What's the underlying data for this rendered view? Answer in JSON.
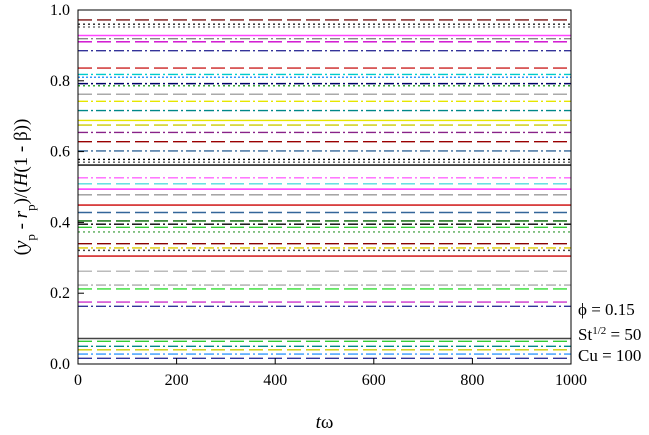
{
  "chart_data": {
    "type": "line",
    "xlabel_var": "t",
    "xlabel_rest": "ω",
    "ylabel_parts": [
      {
        "t": "(",
        "i": false
      },
      {
        "t": "y",
        "i": true
      },
      {
        "t": "p",
        "i": false,
        "sub": true
      },
      {
        "t": " - ",
        "i": false
      },
      {
        "t": "r",
        "i": true
      },
      {
        "t": "p",
        "i": false,
        "sub": true
      },
      {
        "t": ")/(",
        "i": false
      },
      {
        "t": "H",
        "i": true
      },
      {
        "t": "(1 - β))",
        "i": false
      }
    ],
    "xlim": [
      0,
      1000
    ],
    "ylim": [
      0,
      1.0
    ],
    "x_ticks": [
      "0",
      "200",
      "400",
      "600",
      "800",
      "1000"
    ],
    "y_ticks": [
      "0.0",
      "0.2",
      "0.4",
      "0.6",
      "0.8",
      "1.0"
    ],
    "x": [
      0,
      1000
    ],
    "series": [
      {
        "y": 0.972,
        "color": "#7a1010",
        "style": "dash"
      },
      {
        "y": 0.96,
        "color": "#222222",
        "style": "dot"
      },
      {
        "y": 0.952,
        "color": "#777777",
        "style": "dot"
      },
      {
        "y": 0.928,
        "color": "#ff44ff",
        "style": "solid"
      },
      {
        "y": 0.919,
        "color": "#888888",
        "style": "dashdot"
      },
      {
        "y": 0.91,
        "color": "#cc00cc",
        "style": "dash"
      },
      {
        "y": 0.885,
        "color": "#333399",
        "style": "dashdot"
      },
      {
        "y": 0.836,
        "color": "#cc2222",
        "style": "dash"
      },
      {
        "y": 0.818,
        "color": "#00cccc",
        "style": "dashdot"
      },
      {
        "y": 0.81,
        "color": "#3399ff",
        "style": "dotdot"
      },
      {
        "y": 0.792,
        "color": "#000066",
        "style": "dashdot"
      },
      {
        "y": 0.786,
        "color": "#33aa33",
        "style": "dot"
      },
      {
        "y": 0.762,
        "color": "#aaaaaa",
        "style": "dash"
      },
      {
        "y": 0.742,
        "color": "#e6e600",
        "style": "dashdot"
      },
      {
        "y": 0.716,
        "color": "#008888",
        "style": "dashdot"
      },
      {
        "y": 0.688,
        "color": "#e6e600",
        "style": "solid"
      },
      {
        "y": 0.675,
        "color": "#cccc00",
        "style": "dash"
      },
      {
        "y": 0.654,
        "color": "#882288",
        "style": "dashdot"
      },
      {
        "y": 0.628,
        "color": "#990000",
        "style": "dash"
      },
      {
        "y": 0.602,
        "color": "#336699",
        "style": "dashdot"
      },
      {
        "y": 0.578,
        "color": "#000000",
        "style": "dot"
      },
      {
        "y": 0.57,
        "color": "#555555",
        "style": "dot"
      },
      {
        "y": 0.562,
        "color": "#000000",
        "style": "solid"
      },
      {
        "y": 0.526,
        "color": "#ff66ff",
        "style": "dashdot"
      },
      {
        "y": 0.509,
        "color": "#55dddd",
        "style": "dash"
      },
      {
        "y": 0.494,
        "color": "#ff33ff",
        "style": "solid"
      },
      {
        "y": 0.478,
        "color": "#999999",
        "style": "dash"
      },
      {
        "y": 0.449,
        "color": "#cc0000",
        "style": "solid"
      },
      {
        "y": 0.428,
        "color": "#336699",
        "style": "dash"
      },
      {
        "y": 0.404,
        "color": "#006600",
        "style": "dash"
      },
      {
        "y": 0.395,
        "color": "#000000",
        "style": "dashdot"
      },
      {
        "y": 0.386,
        "color": "#33cc33",
        "style": "dash"
      },
      {
        "y": 0.373,
        "color": "#55aa55",
        "style": "dot"
      },
      {
        "y": 0.34,
        "color": "#880000",
        "style": "dash"
      },
      {
        "y": 0.328,
        "color": "#ddcc00",
        "style": "dashdot"
      },
      {
        "y": 0.321,
        "color": "#444444",
        "style": "dot"
      },
      {
        "y": 0.305,
        "color": "#cc0000",
        "style": "solid"
      },
      {
        "y": 0.262,
        "color": "#bbbbbb",
        "style": "dash"
      },
      {
        "y": 0.223,
        "color": "#aaaaaa",
        "style": "dashdot"
      },
      {
        "y": 0.212,
        "color": "#33dd33",
        "style": "dash"
      },
      {
        "y": 0.175,
        "color": "#cc33cc",
        "style": "dash"
      },
      {
        "y": 0.163,
        "color": "#333399",
        "style": "dashdot"
      },
      {
        "y": 0.072,
        "color": "#444444",
        "style": "solid"
      },
      {
        "y": 0.064,
        "color": "#33cc33",
        "style": "dash"
      },
      {
        "y": 0.05,
        "color": "#008888",
        "style": "dashdot"
      },
      {
        "y": 0.04,
        "color": "#cccc00",
        "style": "dash"
      },
      {
        "y": 0.028,
        "color": "#3399ff",
        "style": "dashdot"
      },
      {
        "y": 0.016,
        "color": "#333399",
        "style": "dash"
      }
    ],
    "annotations": {
      "phi": "ϕ = 0.15",
      "st_base": "St",
      "st_exp": "1/2",
      "st_val": " = 50",
      "cu": "Cu = 100"
    },
    "grid": false
  }
}
